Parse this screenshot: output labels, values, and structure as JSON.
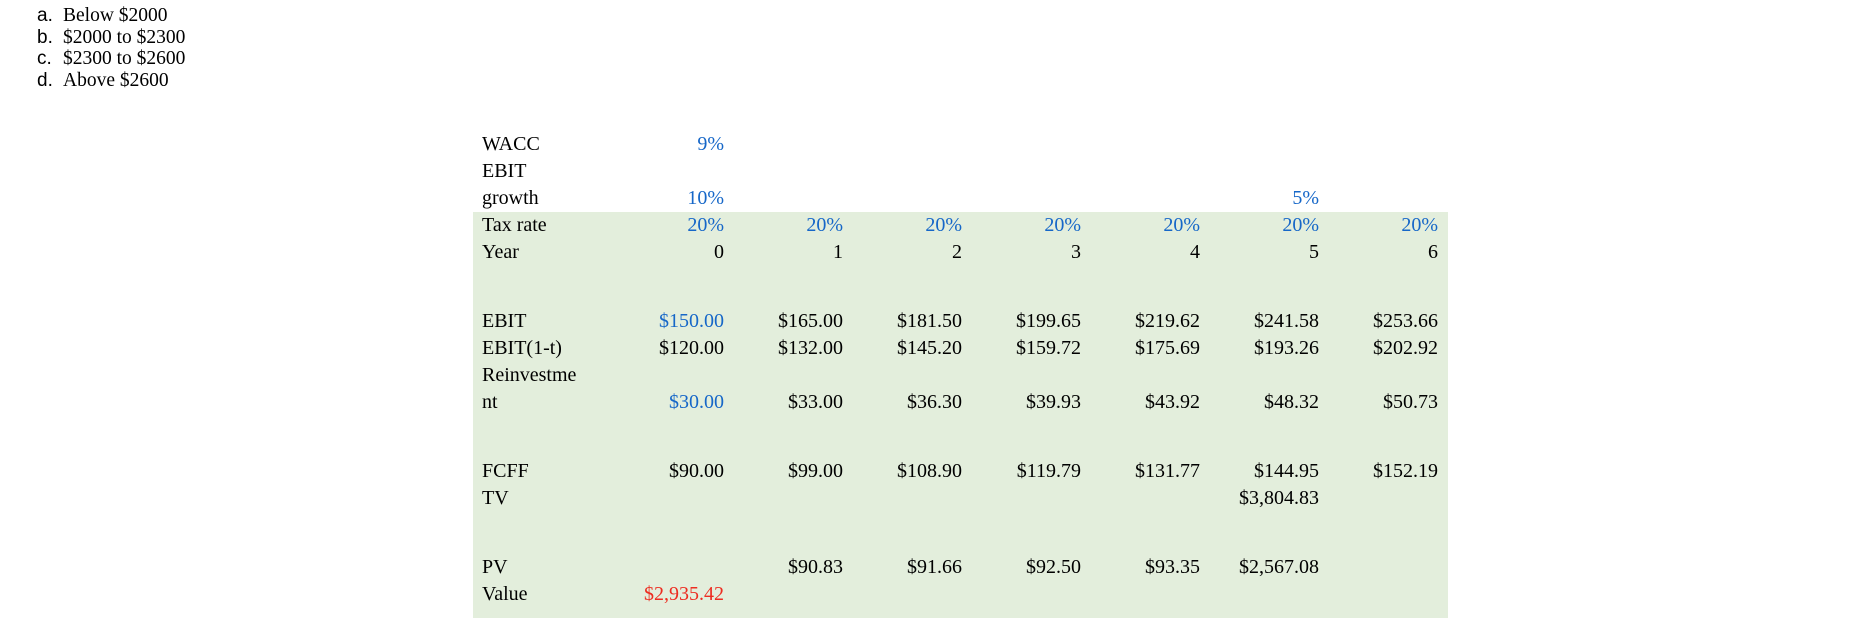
{
  "question": {
    "options": [
      {
        "marker": "a.",
        "text": "Below $2000"
      },
      {
        "marker": "b.",
        "text": "$2000 to $2300"
      },
      {
        "marker": "c.",
        "text": "$2300 to $2600"
      },
      {
        "marker": "d.",
        "text": "Above $2600"
      }
    ]
  },
  "colors": {
    "table_highlight_bg": "#e3eedc",
    "assumption_blue": "#1667c8",
    "result_red": "#ed2d21",
    "text_black": "#000000"
  },
  "spreadsheet": {
    "year_columns": [
      "0",
      "1",
      "2",
      "3",
      "4",
      "5",
      "6"
    ],
    "rows": [
      {
        "id": "wacc",
        "label": "WACC",
        "zone": "plain",
        "cells": [
          "9%",
          "",
          "",
          "",
          "",
          "",
          ""
        ],
        "styles": [
          "blue",
          "",
          "",
          "",
          "",
          "",
          ""
        ]
      },
      {
        "id": "ebit-growth-label",
        "label": "EBIT",
        "zone": "plain",
        "cells": [
          "",
          "",
          "",
          "",
          "",
          "",
          ""
        ],
        "styles": [
          "",
          "",
          "",
          "",
          "",
          "",
          ""
        ]
      },
      {
        "id": "growth",
        "label": "growth",
        "zone": "plain",
        "cells": [
          "10%",
          "",
          "",
          "",
          "",
          "5%",
          ""
        ],
        "styles": [
          "blue",
          "",
          "",
          "",
          "",
          "blue",
          ""
        ]
      },
      {
        "id": "tax-rate",
        "label": "Tax rate",
        "zone": "green",
        "cells": [
          "20%",
          "20%",
          "20%",
          "20%",
          "20%",
          "20%",
          "20%"
        ],
        "styles": [
          "blue",
          "blue",
          "blue",
          "blue",
          "blue",
          "blue",
          "blue"
        ]
      },
      {
        "id": "year",
        "label": "Year",
        "zone": "green",
        "cells": [
          "0",
          "1",
          "2",
          "3",
          "4",
          "5",
          "6"
        ],
        "styles": [
          "",
          "",
          "",
          "",
          "",
          "",
          ""
        ]
      },
      {
        "id": "spacer-1",
        "label": "",
        "zone": "green",
        "spacer": true
      },
      {
        "id": "ebit",
        "label": "EBIT",
        "zone": "green",
        "cells": [
          "$150.00",
          "$165.00",
          "$181.50",
          "$199.65",
          "$219.62",
          "$241.58",
          "$253.66"
        ],
        "styles": [
          "blue",
          "",
          "",
          "",
          "",
          "",
          ""
        ]
      },
      {
        "id": "ebit-after-tax",
        "label": "EBIT(1-t)",
        "zone": "green",
        "cells": [
          "$120.00",
          "$132.00",
          "$145.20",
          "$159.72",
          "$175.69",
          "$193.26",
          "$202.92"
        ],
        "styles": [
          "",
          "",
          "",
          "",
          "",
          "",
          ""
        ]
      },
      {
        "id": "reinvestment-label",
        "label": "Reinvestme",
        "zone": "green",
        "cells": [
          "",
          "",
          "",
          "",
          "",
          "",
          ""
        ],
        "styles": [
          "",
          "",
          "",
          "",
          "",
          "",
          ""
        ]
      },
      {
        "id": "reinvestment",
        "label": "nt",
        "zone": "green",
        "cells": [
          "$30.00",
          "$33.00",
          "$36.30",
          "$39.93",
          "$43.92",
          "$48.32",
          "$50.73"
        ],
        "styles": [
          "blue",
          "",
          "",
          "",
          "",
          "",
          ""
        ]
      },
      {
        "id": "spacer-2",
        "label": "",
        "zone": "green",
        "spacer": true
      },
      {
        "id": "fcff",
        "label": "FCFF",
        "zone": "green",
        "cells": [
          "$90.00",
          "$99.00",
          "$108.90",
          "$119.79",
          "$131.77",
          "$144.95",
          "$152.19"
        ],
        "styles": [
          "",
          "",
          "",
          "",
          "",
          "",
          ""
        ]
      },
      {
        "id": "tv",
        "label": "TV",
        "zone": "green",
        "cells": [
          "",
          "",
          "",
          "",
          "",
          "$3,804.83",
          ""
        ],
        "styles": [
          "",
          "",
          "",
          "",
          "",
          "",
          ""
        ]
      },
      {
        "id": "spacer-3",
        "label": "",
        "zone": "green",
        "spacer": true
      },
      {
        "id": "pv",
        "label": "PV",
        "zone": "green",
        "cells": [
          "",
          "$90.83",
          "$91.66",
          "$92.50",
          "$93.35",
          "$2,567.08",
          ""
        ],
        "styles": [
          "",
          "",
          "",
          "",
          "",
          "",
          ""
        ]
      },
      {
        "id": "value",
        "label": "Value",
        "zone": "green",
        "cells": [
          "$2,935.42",
          "",
          "",
          "",
          "",
          "",
          ""
        ],
        "styles": [
          "red",
          "",
          "",
          "",
          "",
          "",
          ""
        ]
      }
    ]
  }
}
